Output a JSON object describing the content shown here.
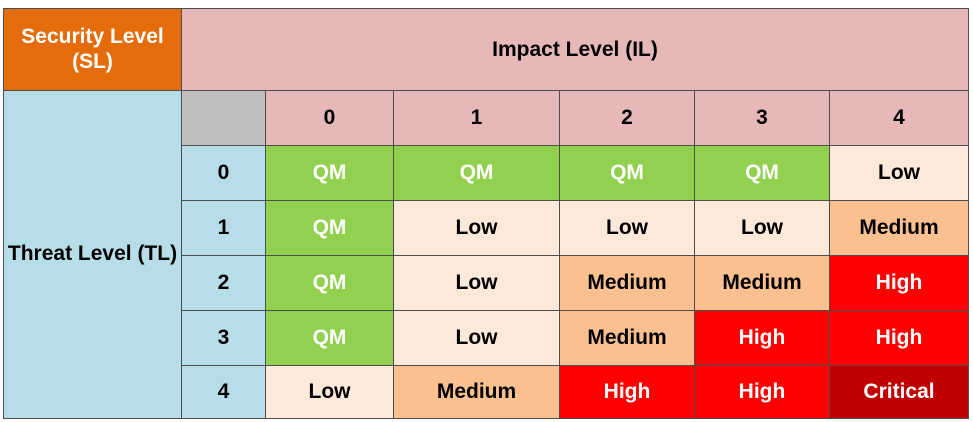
{
  "header": {
    "security_level": "Security Level (SL)",
    "impact_level": "Impact Level (IL)",
    "threat_level": "Threat Level (TL)"
  },
  "impact_levels": [
    "0",
    "1",
    "2",
    "3",
    "4"
  ],
  "threat_levels": [
    "0",
    "1",
    "2",
    "3",
    "4"
  ],
  "matrix": [
    [
      "QM",
      "QM",
      "QM",
      "QM",
      "Low"
    ],
    [
      "QM",
      "Low",
      "Low",
      "Low",
      "Medium"
    ],
    [
      "QM",
      "Low",
      "Medium",
      "Medium",
      "High"
    ],
    [
      "QM",
      "Low",
      "Medium",
      "High",
      "High"
    ],
    [
      "Low",
      "Medium",
      "High",
      "High",
      "Critical"
    ]
  ],
  "level_colors": {
    "QM": "#92d050",
    "Low": "#fde9d9",
    "Medium": "#fac090",
    "High": "#ff0000",
    "Critical": "#c00000"
  }
}
